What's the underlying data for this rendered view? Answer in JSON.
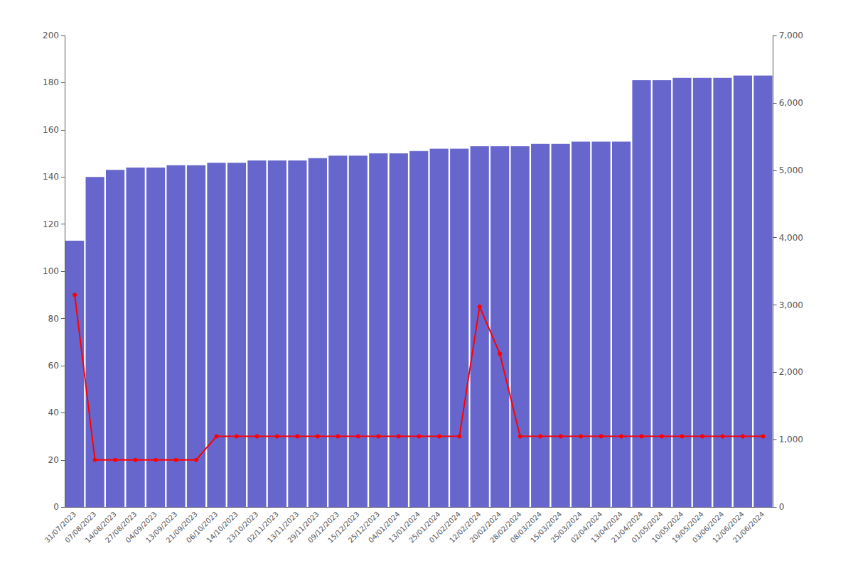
{
  "chart_data": {
    "type": "bar",
    "categories": [
      "31/07/2023",
      "07/08/2023",
      "14/08/2023",
      "27/08/2023",
      "04/09/2023",
      "13/09/2023",
      "21/09/2023",
      "06/10/2023",
      "14/10/2023",
      "23/10/2023",
      "02/11/2023",
      "13/11/2023",
      "29/11/2023",
      "09/12/2023",
      "15/12/2023",
      "25/12/2023",
      "04/01/2024",
      "13/01/2024",
      "25/01/2024",
      "01/02/2024",
      "12/02/2024",
      "20/02/2024",
      "28/02/2024",
      "08/03/2024",
      "15/03/2024",
      "25/03/2024",
      "02/04/2024",
      "13/04/2024",
      "21/04/2024",
      "01/05/2024",
      "10/05/2024",
      "19/05/2024",
      "03/06/2024",
      "12/06/2024",
      "21/06/2024"
    ],
    "series": [
      {
        "type": "bar",
        "color": "#6666cc",
        "values": [
          113,
          140,
          143,
          144,
          144,
          145,
          145,
          146,
          146,
          147,
          147,
          147,
          148,
          149,
          149,
          150,
          150,
          151,
          152,
          152,
          153,
          153,
          153,
          154,
          154,
          155,
          155,
          155,
          181,
          181,
          182,
          182,
          182,
          183,
          183
        ]
      },
      {
        "type": "line",
        "color": "#ff0000",
        "marker": "circle",
        "values": [
          90,
          20,
          20,
          20,
          20,
          20,
          20,
          30,
          30,
          30,
          30,
          30,
          30,
          30,
          30,
          30,
          30,
          30,
          30,
          30,
          85,
          65,
          30,
          30,
          30,
          30,
          30,
          30,
          30,
          30,
          30,
          30,
          30,
          30,
          30
        ]
      }
    ],
    "ylim": [
      0,
      200
    ],
    "yticks": [
      0,
      20,
      40,
      60,
      80,
      100,
      120,
      140,
      160,
      180,
      200
    ],
    "y2lim": [
      0,
      7000
    ],
    "y2ticks": [
      0,
      1000,
      2000,
      3000,
      4000,
      5000,
      6000,
      7000
    ],
    "grid": false
  }
}
